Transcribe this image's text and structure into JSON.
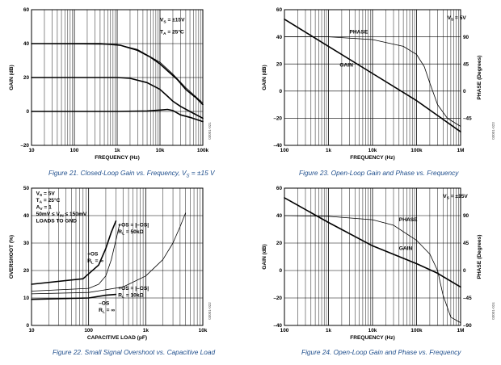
{
  "captions": {
    "fig21": "Figure 21. Closed-Loop Gain vs. Frequency, V",
    "fig21_sub": "S",
    "fig21_tail": " = ±15 V",
    "fig22": "Figure 22. Small Signal Overshoot vs. Capacitive Load",
    "fig23": "Figure 23. Open-Loop Gain and Phase vs. Frequency",
    "fig24": "Figure 24. Open-Loop Gain and Phase vs. Frequency"
  },
  "chart_data": [
    {
      "id": "fig21",
      "type": "line",
      "title": "Closed-Loop Gain vs. Frequency",
      "xlabel": "FREQUENCY (Hz)",
      "ylabel": "GAIN (dB)",
      "xscale": "log",
      "xlim": [
        10,
        100000
      ],
      "ylim": [
        -20,
        60
      ],
      "xticks": [
        10,
        100,
        1000,
        10000,
        100000
      ],
      "xtick_labels": [
        "10",
        "100",
        "1k",
        "10k",
        "100k"
      ],
      "yticks": [
        -20,
        0,
        20,
        40,
        60
      ],
      "ytick_labels": [
        "–20",
        "0",
        "20",
        "40",
        "60"
      ],
      "right_yticks": [],
      "right_ytick_labels": [],
      "right_ylabel": "",
      "annotations": [
        {
          "text": "V",
          "sub": "S",
          "tail": " = ±15V",
          "fx": 10000,
          "fy": 53,
          "anchor": "start"
        },
        {
          "text": "T",
          "sub": "A",
          "tail": " = 25°C",
          "fx": 10000,
          "fy": 46,
          "anchor": "start"
        }
      ],
      "fig_id": "03001-021",
      "series": [
        {
          "name": "Gain 40 dB",
          "weight": "heavy",
          "x": [
            10,
            400,
            1200,
            3000,
            6000,
            10000,
            15000,
            25000,
            40000,
            70000,
            100000
          ],
          "y": [
            40,
            40,
            39,
            36,
            32,
            28,
            24,
            19,
            13,
            8,
            4
          ]
        },
        {
          "name": "Gain 20 dB",
          "weight": "heavy",
          "x": [
            10,
            1000,
            2000,
            5000,
            10000,
            15000,
            20000,
            30000,
            50000,
            100000
          ],
          "y": [
            20,
            20,
            19.5,
            17,
            13,
            9,
            6,
            3,
            0,
            -4
          ]
        },
        {
          "name": "Gain 0 dB",
          "weight": "heavy",
          "x": [
            10,
            1000,
            5000,
            10000,
            15000,
            20000,
            30000,
            50000,
            100000
          ],
          "y": [
            0,
            0,
            0.3,
            0.8,
            1.2,
            0.5,
            -2,
            -3.5,
            -6
          ]
        },
        {
          "name": "Gain 40 dB (thin)",
          "weight": "thin",
          "x": [
            10,
            1000,
            3000,
            10000,
            20000,
            40000,
            100000
          ],
          "y": [
            40,
            39.5,
            36.5,
            29,
            22,
            14,
            5
          ]
        }
      ]
    },
    {
      "id": "fig22",
      "type": "line",
      "title": "Small Signal Overshoot vs. Capacitive Load",
      "xlabel": "CAPACITIVE LOAD (pF)",
      "ylabel": "OVERSHOOT (%)",
      "xscale": "log",
      "xlim": [
        10,
        10000
      ],
      "ylim": [
        0,
        50
      ],
      "xticks": [
        10,
        100,
        1000,
        10000
      ],
      "xtick_labels": [
        "10",
        "100",
        "1k",
        "10k"
      ],
      "yticks": [
        0,
        10,
        20,
        30,
        40,
        50
      ],
      "ytick_labels": [
        "0",
        "10",
        "20",
        "30",
        "40",
        "50"
      ],
      "right_yticks": [],
      "right_ytick_labels": [],
      "right_ylabel": "",
      "annotations": [
        {
          "text": "V",
          "sub": "S",
          "tail": " = 5V",
          "fx": 12,
          "fy": 47.5,
          "anchor": "start"
        },
        {
          "text": "T",
          "sub": "A",
          "tail": " = 25°C",
          "fx": 12,
          "fy": 45,
          "anchor": "start"
        },
        {
          "text": "A",
          "sub": "V",
          "tail": " = 1",
          "fx": 12,
          "fy": 42.5,
          "anchor": "start"
        },
        {
          "text": "50mV ≤ V",
          "sub": "IN",
          "tail": " ≤ 150mV",
          "fx": 12,
          "fy": 40,
          "anchor": "start"
        },
        {
          "text": "LOADS TO GND",
          "sub": "",
          "tail": "",
          "fx": 12,
          "fy": 37.5,
          "anchor": "start"
        },
        {
          "text": "+OS = |–OS|",
          "sub": "",
          "tail": "",
          "fx": 330,
          "fy": 36,
          "anchor": "start"
        },
        {
          "text": "R",
          "sub": "L",
          "tail": " = 50kΩ",
          "fx": 330,
          "fy": 33.5,
          "anchor": "start"
        },
        {
          "text": "+OS",
          "sub": "",
          "tail": "",
          "fx": 95,
          "fy": 25.5,
          "anchor": "start"
        },
        {
          "text": "R",
          "sub": "L",
          "tail": " = ∞",
          "fx": 95,
          "fy": 23,
          "anchor": "start"
        },
        {
          "text": "+OS = |–OS|",
          "sub": "",
          "tail": "",
          "fx": 330,
          "fy": 13,
          "anchor": "start"
        },
        {
          "text": "R",
          "sub": "L",
          "tail": " = 10kΩ",
          "fx": 330,
          "fy": 10.5,
          "anchor": "start"
        },
        {
          "text": "–OS",
          "sub": "",
          "tail": "",
          "fx": 150,
          "fy": 7.5,
          "anchor": "start"
        },
        {
          "text": "R",
          "sub": "L",
          "tail": " = ∞",
          "fx": 150,
          "fy": 5,
          "anchor": "start"
        }
      ],
      "fig_id": "03001-022",
      "series": [
        {
          "name": "+OS, RL = ∞",
          "weight": "heavy",
          "x": [
            10,
            80,
            150,
            200,
            250,
            300
          ],
          "y": [
            15,
            17,
            22,
            28,
            34,
            38
          ]
        },
        {
          "name": "+OS = |–OS|, RL = 50kΩ",
          "weight": "thin",
          "x": [
            10,
            100,
            150,
            200,
            250,
            300,
            350
          ],
          "y": [
            12.5,
            13.5,
            15,
            18,
            24,
            31,
            37
          ]
        },
        {
          "name": "+OS = |–OS|, RL = 10kΩ",
          "weight": "thin",
          "x": [
            10,
            100,
            400,
            1000,
            2000,
            3000,
            4000,
            5000
          ],
          "y": [
            11.5,
            12,
            14,
            18,
            24,
            30,
            36,
            41
          ]
        },
        {
          "name": "–OS, RL = ∞",
          "weight": "heavy",
          "x": [
            10,
            100,
            200,
            300
          ],
          "y": [
            9.5,
            10,
            11,
            11.3
          ]
        }
      ]
    },
    {
      "id": "fig23",
      "type": "line",
      "title": "Open-Loop Gain and Phase vs. Frequency",
      "xlabel": "FREQUENCY (Hz)",
      "ylabel": "GAIN (dB)",
      "xscale": "log",
      "xlim": [
        100,
        1000000
      ],
      "ylim": [
        -40,
        60
      ],
      "xticks": [
        100,
        1000,
        10000,
        100000,
        1000000
      ],
      "xtick_labels": [
        "100",
        "1k",
        "10k",
        "100k",
        "1M"
      ],
      "yticks": [
        -40,
        -20,
        0,
        20,
        40,
        60
      ],
      "ytick_labels": [
        "–40",
        "–20",
        "0",
        "20",
        "40",
        "60"
      ],
      "right_yticks": [
        -40,
        -20,
        0,
        20,
        40,
        60
      ],
      "right_ytick_labels": [
        "",
        "–45",
        "0",
        "45",
        "90",
        ""
      ],
      "right_ylabel": "PHASE (Degrees)",
      "annotations": [
        {
          "text": "V",
          "sub": "S",
          "tail": " = 5V",
          "fx": 500000,
          "fy": 53,
          "anchor": "start"
        },
        {
          "text": "PHASE",
          "sub": "",
          "tail": "",
          "fx": 3000,
          "fy": 42.5,
          "anchor": "start"
        },
        {
          "text": "GAIN",
          "sub": "",
          "tail": "",
          "fx": 1800,
          "fy": 18,
          "anchor": "start"
        }
      ],
      "fig_id": "03001-023",
      "series": [
        {
          "name": "GAIN",
          "weight": "heavy",
          "x": [
            100,
            1000,
            10000,
            100000,
            300000,
            1000000
          ],
          "y": [
            53,
            33,
            13,
            -7,
            -18,
            -30
          ]
        },
        {
          "name": "PHASE",
          "weight": "thin",
          "x": [
            100,
            1000,
            10000,
            50000,
            100000,
            150000,
            200000,
            300000,
            500000,
            1000000
          ],
          "y": [
            40,
            40,
            38,
            33,
            27,
            18,
            6,
            -10,
            -20,
            -26
          ]
        }
      ]
    },
    {
      "id": "fig24",
      "type": "line",
      "title": "Open-Loop Gain and Phase vs. Frequency",
      "xlabel": "FREQUENCY (Hz)",
      "ylabel": "GAIN (dB)",
      "xscale": "log",
      "xlim": [
        100,
        1000000
      ],
      "ylim": [
        -40,
        60
      ],
      "xticks": [
        100,
        1000,
        10000,
        100000,
        1000000
      ],
      "xtick_labels": [
        "100",
        "1k",
        "10k",
        "100k",
        "1M"
      ],
      "yticks": [
        -40,
        -20,
        0,
        20,
        40,
        60
      ],
      "ytick_labels": [
        "–40",
        "–20",
        "0",
        "20",
        "40",
        "60"
      ],
      "right_yticks": [
        -40,
        -20,
        0,
        20,
        40,
        60
      ],
      "right_ytick_labels": [
        "–90",
        "–45",
        "0",
        "45",
        "90",
        ""
      ],
      "right_ylabel": "PHASE (Degrees)",
      "annotations": [
        {
          "text": "V",
          "sub": "S",
          "tail": " = ±15V",
          "fx": 400000,
          "fy": 53,
          "anchor": "start"
        },
        {
          "text": "PHASE",
          "sub": "",
          "tail": "",
          "fx": 40000,
          "fy": 36,
          "anchor": "start"
        },
        {
          "text": "GAIN",
          "sub": "",
          "tail": "",
          "fx": 40000,
          "fy": 15,
          "anchor": "start"
        }
      ],
      "fig_id": "03001-024",
      "series": [
        {
          "name": "GAIN",
          "weight": "heavy",
          "x": [
            100,
            1000,
            10000,
            100000,
            300000,
            1000000
          ],
          "y": [
            53,
            35,
            18,
            5,
            -2,
            -12
          ]
        },
        {
          "name": "PHASE",
          "weight": "thin",
          "x": [
            100,
            1000,
            10000,
            30000,
            100000,
            200000,
            300000,
            400000,
            600000,
            1000000
          ],
          "y": [
            40,
            39.5,
            37,
            33,
            22,
            12,
            0,
            -18,
            -34,
            -38
          ]
        }
      ]
    }
  ]
}
